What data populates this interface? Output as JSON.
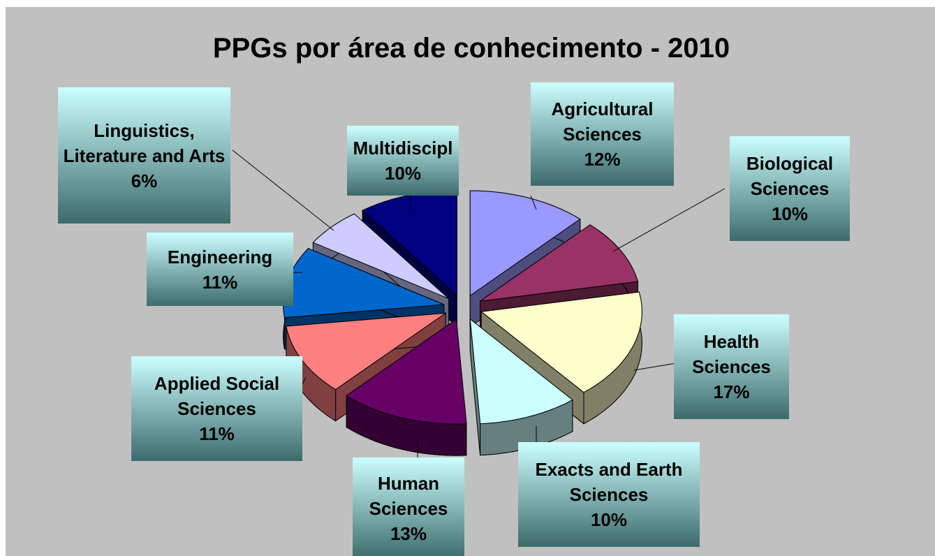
{
  "chart_data": {
    "type": "pie",
    "title": "PPGs por área de conhecimento - 2010",
    "categories": [
      "Agricultural Sciences",
      "Biological Sciences",
      "Health Sciences",
      "Exacts and Earth Sciences",
      "Human Sciences",
      "Applied Social Sciences",
      "Engineering",
      "Linguistics, Literature and Arts",
      "Multidiscipl"
    ],
    "values": [
      12,
      10,
      17,
      10,
      13,
      11,
      11,
      6,
      10
    ],
    "value_labels": [
      "12%",
      "10%",
      "17%",
      "10%",
      "13%",
      "11%",
      "11%",
      "6%",
      "10%"
    ],
    "colors": [
      "#9999ff",
      "#993366",
      "#ffffcc",
      "#ccffff",
      "#660066",
      "#ff8080",
      "#0066cc",
      "#ccccff",
      "#000080"
    ]
  }
}
